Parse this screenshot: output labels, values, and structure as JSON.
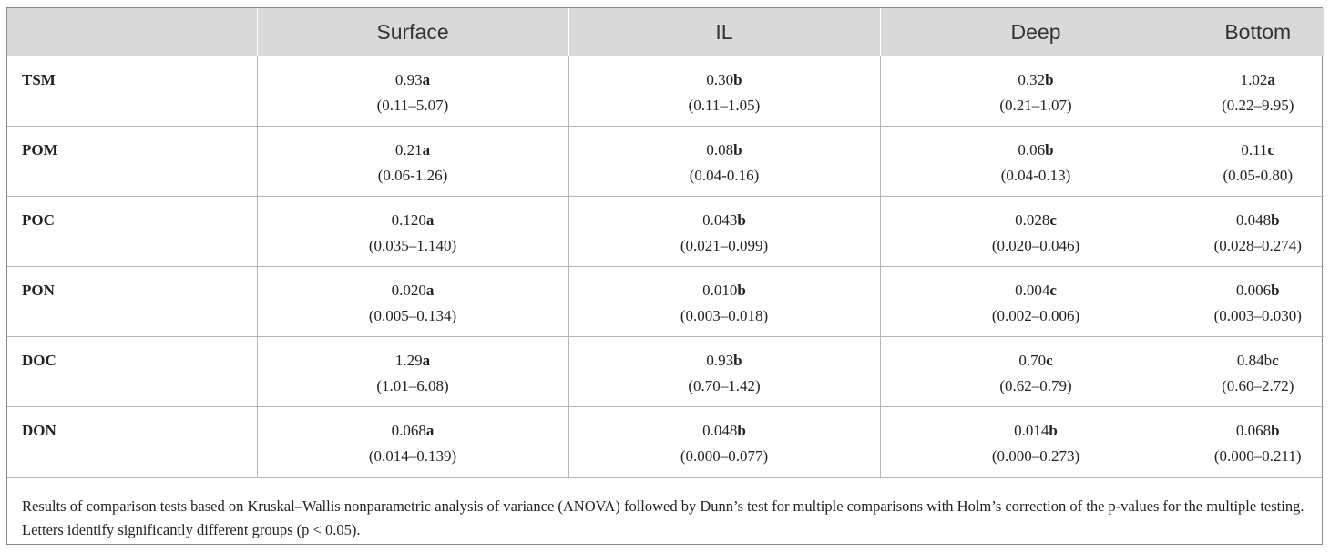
{
  "table": {
    "columns": [
      "",
      "Surface",
      "IL",
      "Deep",
      "Bottom"
    ],
    "rows": [
      {
        "label": "TSM",
        "cells": [
          {
            "value": "0.93",
            "letter": "a",
            "range": "(0.11–5.07)"
          },
          {
            "value": "0.30",
            "letter": "b",
            "range": "(0.11–1.05)"
          },
          {
            "value": "0.32",
            "letter": "b",
            "range": "(0.21–1.07)"
          },
          {
            "value": "1.02",
            "letter": "a",
            "range": "(0.22–9.95)"
          }
        ]
      },
      {
        "label": "POM",
        "cells": [
          {
            "value": "0.21",
            "letter": "a",
            "range": "(0.06-1.26)"
          },
          {
            "value": "0.08",
            "letter": "b",
            "range": "(0.04-0.16)"
          },
          {
            "value": "0.06",
            "letter": "b",
            "range": "(0.04-0.13)"
          },
          {
            "value": "0.11",
            "letter": "c",
            "range": "(0.05-0.80)"
          }
        ]
      },
      {
        "label": "POC",
        "cells": [
          {
            "value": "0.120",
            "letter": "a",
            "range": "(0.035–1.140)"
          },
          {
            "value": "0.043",
            "letter": "b",
            "range": "(0.021–0.099)"
          },
          {
            "value": "0.028",
            "letter": "c",
            "range": "(0.020–0.046)"
          },
          {
            "value": "0.048",
            "letter": "b",
            "range": "(0.028–0.274)"
          }
        ]
      },
      {
        "label": "PON",
        "cells": [
          {
            "value": "0.020",
            "letter": "a",
            "range": "(0.005–0.134)"
          },
          {
            "value": "0.010",
            "letter": "b",
            "range": "(0.003–0.018)"
          },
          {
            "value": "0.004",
            "letter": "c",
            "range": "(0.002–0.006)"
          },
          {
            "value": "0.006",
            "letter": "b",
            "range": "(0.003–0.030)"
          }
        ]
      },
      {
        "label": "DOC",
        "cells": [
          {
            "value": "1.29",
            "letter": "a",
            "range": "(1.01–6.08)"
          },
          {
            "value": "0.93",
            "letter": "b",
            "range": "(0.70–1.42)"
          },
          {
            "value": "0.70",
            "letter": "c",
            "range": "(0.62–0.79)"
          },
          {
            "value": "0.84b",
            "letter": "c",
            "range": "(0.60–2.72)"
          }
        ]
      },
      {
        "label": "DON",
        "cells": [
          {
            "value": "0.068",
            "letter": "a",
            "range": "(0.014–0.139)"
          },
          {
            "value": "0.048",
            "letter": "b",
            "range": "(0.000–0.077)"
          },
          {
            "value": "0.014",
            "letter": "b",
            "range": "(0.000–0.273)"
          },
          {
            "value": "0.068",
            "letter": "b",
            "range": "(0.000–0.211)"
          }
        ]
      }
    ],
    "footnote": "Results of comparison tests based on Kruskal–Wallis nonparametric analysis of variance (ANOVA) followed by Dunn’s test for multiple comparisons with Holm’s correction of the p-values for the multiple testing. Letters identify significantly different groups (p < 0.05)."
  }
}
